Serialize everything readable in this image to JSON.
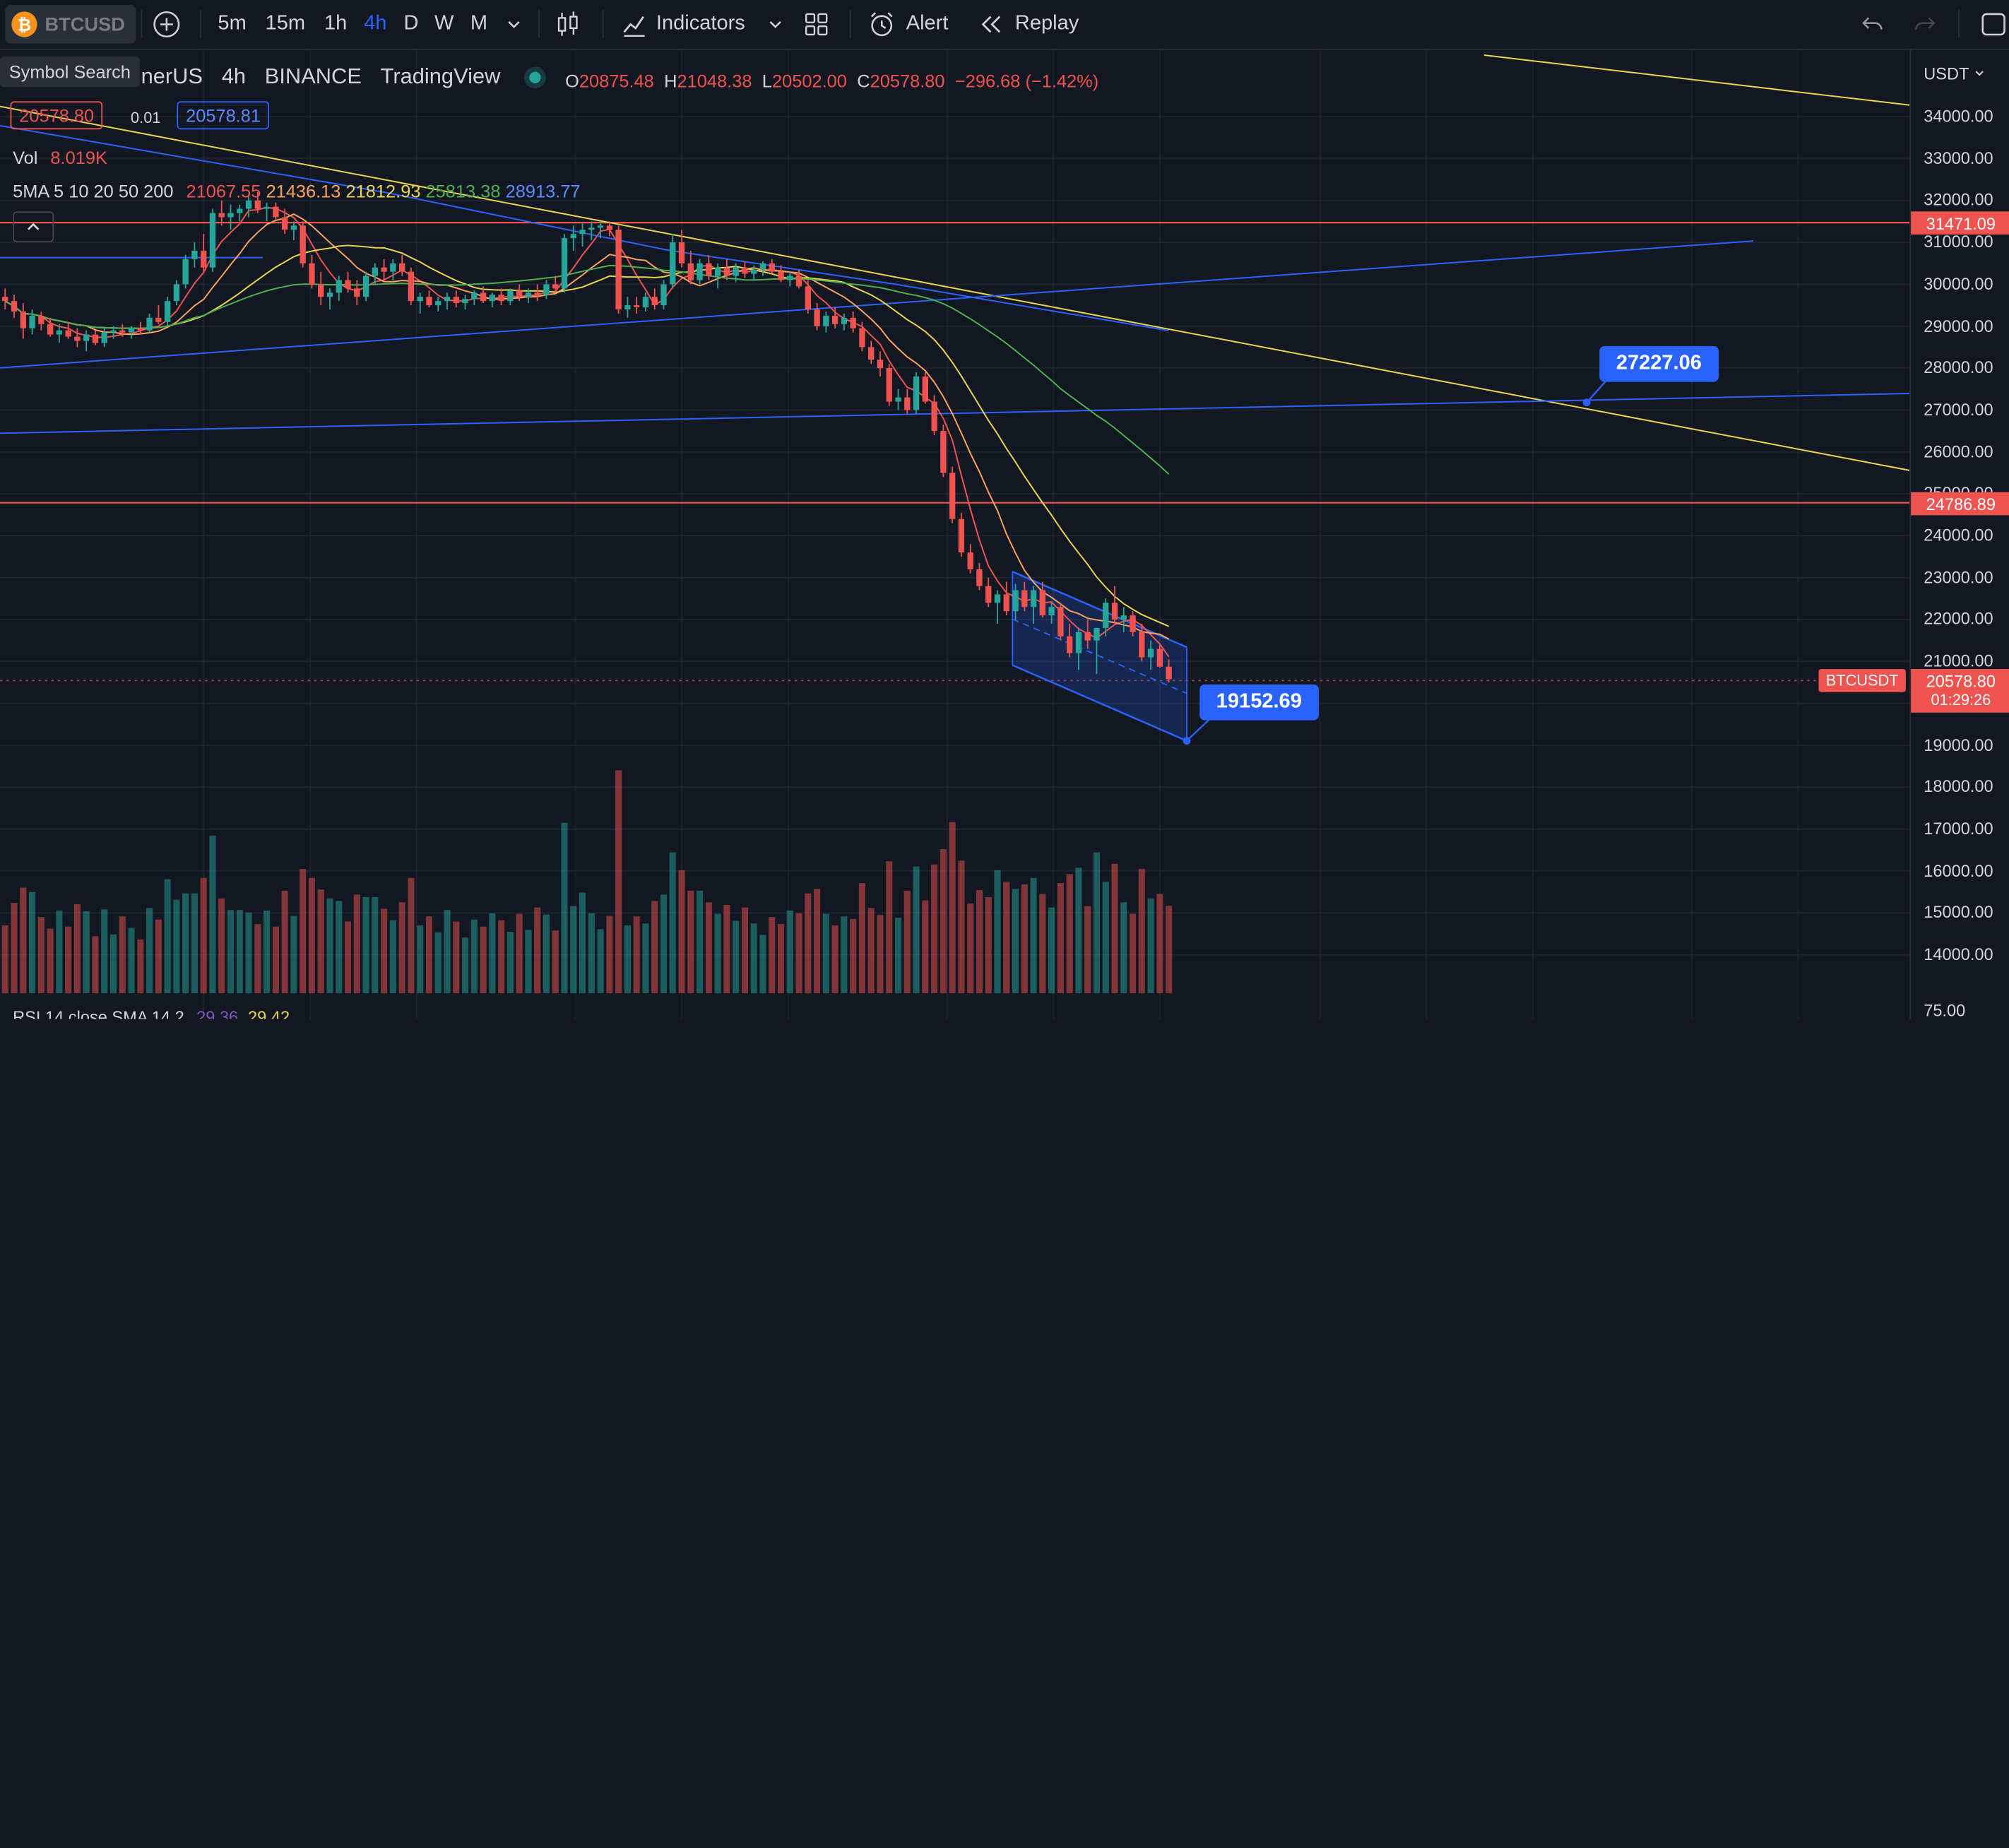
{
  "toolbar": {
    "symbol": "BTCUSD",
    "symbol_logo": "₿",
    "timeframes": [
      "5m",
      "15m",
      "1h",
      "4h",
      "D",
      "W",
      "M"
    ],
    "active_timeframe": "4h",
    "indicators_label": "Indicators",
    "alert_label": "Alert",
    "replay_label": "Replay"
  },
  "tooltip": "Symbol Search",
  "legend": {
    "title_parts": [
      "nerUS",
      "4h",
      "BINANCE",
      "TradingView"
    ],
    "ohlc": {
      "o_label": "O",
      "o": "20875.48",
      "h_label": "H",
      "h": "21048.38",
      "l_label": "L",
      "l": "20502.00",
      "c_label": "C",
      "c": "20578.80",
      "change": "−296.68 (−1.42%)"
    },
    "bid": "20578.80",
    "spread": "0.01",
    "ask": "20578.81",
    "vol_label": "Vol",
    "vol_value": "8.019K",
    "ma_label": "5MA 5 10 20 50 200",
    "ma_values": [
      "21067.55",
      "21436.13",
      "21812.93",
      "25813.38",
      "28913.77"
    ],
    "rsi_label": "RSI 14 close SMA 14 2",
    "rsi_values": [
      "29.36",
      "29.42"
    ]
  },
  "colors": {
    "background": "#131722",
    "up": "#26a69a",
    "down": "#ef5350",
    "accent": "#2962ff",
    "ma5": "#ef5350",
    "ma10": "#f7a35c",
    "ma20": "#e8d44d",
    "ma50": "#4caf50",
    "ma200": "#2962ff"
  },
  "price_axis": {
    "currency": "USDT",
    "labels": [
      "34000.00",
      "33000.00",
      "32000.00",
      "31000.00",
      "30000.00",
      "29000.00",
      "28000.00",
      "27000.00",
      "26000.00",
      "25000.00",
      "24000.00",
      "23000.00",
      "22000.00",
      "21000.00",
      "19000.00",
      "18000.00",
      "17000.00",
      "16000.00",
      "15000.00",
      "14000.00"
    ],
    "bottom_label": "75.00",
    "resistance_tag": "31471.09",
    "support_tag": "24786.89",
    "last_price": "20578.80",
    "countdown": "01:29:26",
    "symbol_tag": "BTCUSDT"
  },
  "callouts": {
    "upper_target": "27227.06",
    "lower_target": "19152.69"
  },
  "chart_data": {
    "type": "candlestick",
    "symbol": "BTCUSDT",
    "ylim": [
      13600,
      34600
    ],
    "horizontal_levels": [
      31471.09,
      24786.89
    ],
    "candles": [
      [
        29700,
        29900,
        29400,
        29600
      ],
      [
        29600,
        29750,
        29200,
        29350
      ],
      [
        29350,
        29550,
        28700,
        28950
      ],
      [
        28950,
        29400,
        28800,
        29250
      ],
      [
        29250,
        29350,
        28900,
        29050
      ],
      [
        29050,
        29200,
        28750,
        28800
      ],
      [
        28800,
        29050,
        28600,
        28900
      ],
      [
        28900,
        29100,
        28700,
        28750
      ],
      [
        28750,
        28950,
        28500,
        28650
      ],
      [
        28650,
        28900,
        28400,
        28800
      ],
      [
        28800,
        28900,
        28550,
        28600
      ],
      [
        28600,
        28950,
        28500,
        28850
      ],
      [
        28850,
        29000,
        28700,
        28900
      ],
      [
        28900,
        29050,
        28750,
        28850
      ],
      [
        28850,
        29000,
        28700,
        28950
      ],
      [
        28950,
        29100,
        28800,
        28900
      ],
      [
        28900,
        29300,
        28850,
        29200
      ],
      [
        29200,
        29500,
        29050,
        29100
      ],
      [
        29100,
        29700,
        29000,
        29600
      ],
      [
        29600,
        30100,
        29500,
        30000
      ],
      [
        30000,
        30700,
        29900,
        30600
      ],
      [
        30600,
        31000,
        30400,
        30800
      ],
      [
        30800,
        31200,
        30300,
        30400
      ],
      [
        30400,
        31800,
        30300,
        31700
      ],
      [
        31700,
        32000,
        31400,
        31600
      ],
      [
        31600,
        31900,
        31300,
        31700
      ],
      [
        31700,
        31900,
        31500,
        31800
      ],
      [
        31800,
        32100,
        31600,
        32000
      ],
      [
        32000,
        32200,
        31700,
        31800
      ],
      [
        31800,
        31950,
        31500,
        31850
      ],
      [
        31850,
        31950,
        31550,
        31600
      ],
      [
        31600,
        31800,
        31200,
        31300
      ],
      [
        31300,
        31500,
        31050,
        31400
      ],
      [
        31400,
        31500,
        30400,
        30500
      ],
      [
        30500,
        30700,
        29900,
        30000
      ],
      [
        30000,
        30300,
        29500,
        29700
      ],
      [
        29700,
        29900,
        29400,
        29800
      ],
      [
        29800,
        30200,
        29600,
        30100
      ],
      [
        30100,
        30300,
        29800,
        29900
      ],
      [
        29900,
        30100,
        29500,
        29700
      ],
      [
        29700,
        30300,
        29600,
        30200
      ],
      [
        30200,
        30500,
        30000,
        30400
      ],
      [
        30400,
        30600,
        30100,
        30300
      ],
      [
        30300,
        30600,
        30100,
        30500
      ],
      [
        30500,
        30700,
        30200,
        30300
      ],
      [
        30300,
        30400,
        29500,
        29600
      ],
      [
        29600,
        29800,
        29300,
        29700
      ],
      [
        29700,
        29850,
        29450,
        29500
      ],
      [
        29500,
        29700,
        29350,
        29600
      ],
      [
        29600,
        29800,
        29400,
        29700
      ],
      [
        29700,
        29850,
        29450,
        29550
      ],
      [
        29550,
        29750,
        29400,
        29650
      ],
      [
        29650,
        29850,
        29500,
        29800
      ],
      [
        29800,
        29950,
        29550,
        29600
      ],
      [
        29600,
        29800,
        29450,
        29750
      ],
      [
        29750,
        29900,
        29500,
        29600
      ],
      [
        29600,
        29900,
        29500,
        29850
      ],
      [
        29850,
        30000,
        29600,
        29700
      ],
      [
        29700,
        29900,
        29550,
        29800
      ],
      [
        29800,
        30000,
        29600,
        29750
      ],
      [
        29750,
        30100,
        29650,
        30000
      ],
      [
        30000,
        30200,
        29800,
        29900
      ],
      [
        29900,
        31200,
        29800,
        31100
      ],
      [
        31100,
        31400,
        30800,
        31200
      ],
      [
        31200,
        31450,
        30900,
        31300
      ],
      [
        31300,
        31500,
        31050,
        31350
      ],
      [
        31350,
        31500,
        31100,
        31400
      ],
      [
        31400,
        31500,
        31150,
        31300
      ],
      [
        31300,
        31400,
        29300,
        29400
      ],
      [
        29400,
        29700,
        29200,
        29500
      ],
      [
        29500,
        29700,
        29300,
        29450
      ],
      [
        29450,
        29800,
        29350,
        29700
      ],
      [
        29700,
        29900,
        29400,
        29500
      ],
      [
        29500,
        30100,
        29400,
        30000
      ],
      [
        30000,
        31200,
        29900,
        31000
      ],
      [
        31000,
        31300,
        30400,
        30500
      ],
      [
        30500,
        30800,
        30000,
        30100
      ],
      [
        30100,
        30600,
        30000,
        30500
      ],
      [
        30500,
        30700,
        30100,
        30200
      ],
      [
        30200,
        30500,
        29900,
        30400
      ],
      [
        30400,
        30600,
        30100,
        30200
      ],
      [
        30200,
        30500,
        30050,
        30400
      ],
      [
        30400,
        30550,
        30150,
        30250
      ],
      [
        30250,
        30450,
        30100,
        30350
      ],
      [
        30350,
        30550,
        30200,
        30500
      ],
      [
        30500,
        30600,
        30250,
        30300
      ],
      [
        30300,
        30450,
        30050,
        30100
      ],
      [
        30100,
        30300,
        29950,
        30200
      ],
      [
        30200,
        30350,
        29900,
        29950
      ],
      [
        29950,
        30100,
        29300,
        29400
      ],
      [
        29400,
        29550,
        28900,
        29000
      ],
      [
        29000,
        29350,
        28850,
        29250
      ],
      [
        29250,
        29450,
        28950,
        29050
      ],
      [
        29050,
        29300,
        28900,
        29200
      ],
      [
        29200,
        29350,
        28850,
        28950
      ],
      [
        28950,
        29100,
        28400,
        28500
      ],
      [
        28500,
        28650,
        28100,
        28200
      ],
      [
        28200,
        28400,
        27800,
        28000
      ],
      [
        28000,
        28100,
        27100,
        27200
      ],
      [
        27200,
        27500,
        27000,
        27300
      ],
      [
        27300,
        27500,
        26900,
        27000
      ],
      [
        27000,
        27900,
        26900,
        27800
      ],
      [
        27800,
        27900,
        27150,
        27200
      ],
      [
        27200,
        27350,
        26400,
        26500
      ],
      [
        26500,
        26650,
        25400,
        25500
      ],
      [
        25500,
        25650,
        24300,
        24400
      ],
      [
        24400,
        24550,
        23500,
        23600
      ],
      [
        23600,
        23800,
        23100,
        23200
      ],
      [
        23200,
        23350,
        22700,
        22800
      ],
      [
        22800,
        23000,
        22300,
        22400
      ],
      [
        22400,
        22700,
        21900,
        22600
      ],
      [
        22600,
        22900,
        22100,
        22200
      ],
      [
        22200,
        22850,
        22000,
        22700
      ],
      [
        22700,
        22900,
        22200,
        22300
      ],
      [
        22300,
        22800,
        21900,
        22700
      ],
      [
        22700,
        22900,
        22050,
        22100
      ],
      [
        22100,
        22400,
        21900,
        22300
      ],
      [
        22300,
        22400,
        21500,
        21600
      ],
      [
        21600,
        21900,
        21100,
        21200
      ],
      [
        21200,
        21800,
        20800,
        21700
      ],
      [
        21700,
        22000,
        21300,
        21500
      ],
      [
        21500,
        21800,
        20700,
        21800
      ],
      [
        21800,
        22500,
        21600,
        22400
      ],
      [
        22400,
        22800,
        21900,
        22000
      ],
      [
        22000,
        22300,
        21700,
        22100
      ],
      [
        22100,
        22200,
        21600,
        21700
      ],
      [
        21700,
        21900,
        21000,
        21100
      ],
      [
        21100,
        21500,
        20800,
        21300
      ],
      [
        21300,
        21400,
        20850,
        20875
      ],
      [
        20875,
        21048,
        20502,
        20579
      ]
    ]
  }
}
